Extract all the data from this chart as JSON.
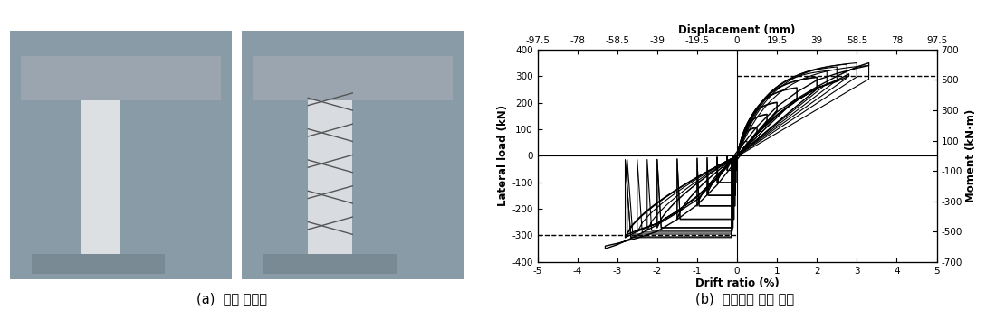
{
  "title_a": "(a)  기둥 실험체",
  "title_b": "(b)  이력거동 실험 결과",
  "xlabel": "Drift ratio (%)",
  "ylabel_left": "Lateral load (kN)",
  "ylabel_right": "Moment (kN·m)",
  "top_xlabel": "Displacement (mm)",
  "top_xtick_labels": [
    "-97.5",
    "-78",
    "-58.5",
    "-39",
    "-19.5",
    "0",
    "19.5",
    "39",
    "58.5",
    "78",
    "97.5"
  ],
  "top_xtick_vals": [
    -5.0,
    -4.0,
    -3.0,
    -2.0,
    -1.0,
    0.0,
    1.0,
    2.0,
    3.0,
    4.0,
    5.0
  ],
  "xlim": [
    -5.0,
    5.0
  ],
  "ylim_left": [
    -400,
    400
  ],
  "ylim_right": [
    -700,
    700
  ],
  "yticks_left": [
    -400,
    -300,
    -200,
    -100,
    0,
    100,
    200,
    300,
    400
  ],
  "yticks_right": [
    -700,
    -500,
    -300,
    -100,
    100,
    300,
    500,
    700
  ],
  "xticks": [
    -5.0,
    -4.0,
    -3.0,
    -2.0,
    -1.0,
    0.0,
    1.0,
    2.0,
    3.0,
    4.0,
    5.0
  ],
  "dashed_pos_y": 300,
  "dashed_neg_y": -300,
  "background_color": "#ffffff"
}
